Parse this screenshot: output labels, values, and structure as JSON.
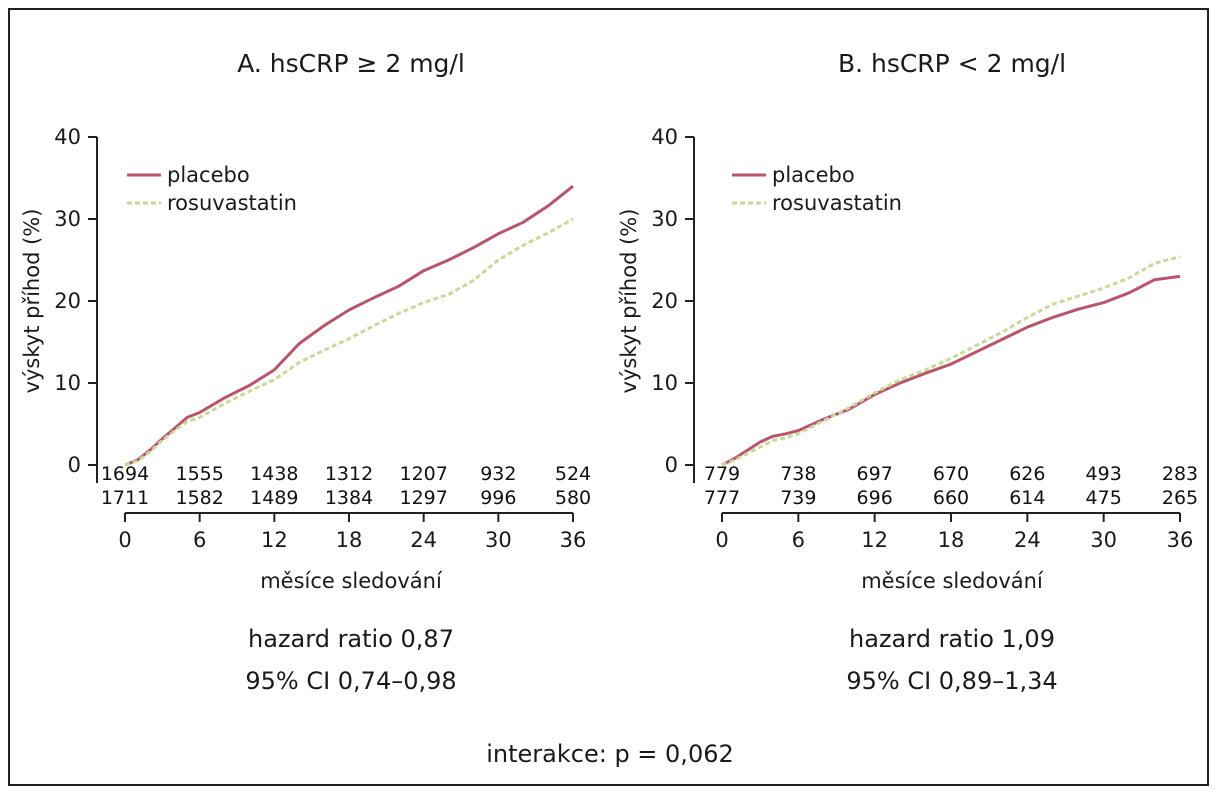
{
  "chart_data": [
    {
      "type": "line",
      "title": "A. hsCRP ≥ 2 mg/l",
      "xlabel": "měsíce sledování",
      "ylabel": "výskyt příhod (%)",
      "xlim": [
        0,
        36
      ],
      "ylim": [
        0,
        40
      ],
      "x_ticks": [
        "0",
        "6",
        "12",
        "18",
        "24",
        "30",
        "36"
      ],
      "y_ticks": [
        "0",
        "10",
        "20",
        "30",
        "40"
      ],
      "legend_position": "top-left",
      "series": [
        {
          "name": "placebo",
          "x": [
            0,
            1,
            2,
            3,
            4,
            5,
            6,
            8,
            10,
            12,
            14,
            16,
            18,
            20,
            22,
            24,
            26,
            28,
            30,
            32,
            34,
            36
          ],
          "values": [
            0,
            0.6,
            1.8,
            3.2,
            4.5,
            5.8,
            6.4,
            8.2,
            9.7,
            11.6,
            14.8,
            17.0,
            18.9,
            20.4,
            21.8,
            23.7,
            25.0,
            26.5,
            28.2,
            29.6,
            31.6,
            34.0
          ]
        },
        {
          "name": "rosuvastatin",
          "x": [
            0,
            1,
            2,
            3,
            4,
            5,
            6,
            8,
            10,
            12,
            14,
            16,
            18,
            20,
            22,
            24,
            26,
            28,
            30,
            32,
            34,
            36
          ],
          "values": [
            0,
            0.5,
            1.6,
            3.0,
            4.2,
            5.3,
            5.8,
            7.5,
            9.0,
            10.4,
            12.5,
            14.0,
            15.4,
            17.0,
            18.5,
            19.8,
            20.8,
            22.5,
            25.0,
            26.8,
            28.3,
            30.0
          ]
        }
      ],
      "risk_table": {
        "times": [
          0,
          6,
          12,
          18,
          24,
          30,
          36
        ],
        "placebo": [
          "1694",
          "1555",
          "1438",
          "1312",
          "1207",
          "932",
          "524"
        ],
        "rosuvastatin": [
          "1711",
          "1582",
          "1489",
          "1384",
          "1297",
          "996",
          "580"
        ]
      },
      "hazard_ratio": "hazard ratio 0,87",
      "ci": "95% CI 0,74–0,98",
      "colors": {
        "placebo": "#b9556a",
        "rosuvastatin": "#c9d99b"
      }
    },
    {
      "type": "line",
      "title": "B. hsCRP < 2 mg/l",
      "xlabel": "měsíce sledování",
      "ylabel": "výskyt příhod (%)",
      "xlim": [
        0,
        36
      ],
      "ylim": [
        0,
        40
      ],
      "x_ticks": [
        "0",
        "6",
        "12",
        "18",
        "24",
        "30",
        "36"
      ],
      "y_ticks": [
        "0",
        "10",
        "20",
        "30",
        "40"
      ],
      "legend_position": "top-left",
      "series": [
        {
          "name": "placebo",
          "x": [
            0,
            1,
            2,
            3,
            4,
            5,
            6,
            8,
            10,
            12,
            14,
            16,
            18,
            20,
            22,
            24,
            26,
            28,
            30,
            32,
            34,
            36
          ],
          "values": [
            0,
            0.8,
            1.8,
            2.8,
            3.5,
            3.8,
            4.2,
            5.6,
            6.8,
            8.6,
            10.0,
            11.2,
            12.3,
            13.8,
            15.3,
            16.8,
            18.0,
            19.0,
            19.8,
            21.0,
            22.6,
            23.0
          ]
        },
        {
          "name": "rosuvastatin",
          "x": [
            0,
            1,
            2,
            3,
            4,
            5,
            6,
            8,
            10,
            12,
            14,
            16,
            18,
            20,
            22,
            24,
            26,
            28,
            30,
            32,
            34,
            36
          ],
          "values": [
            0,
            0.6,
            1.4,
            2.2,
            3.0,
            3.3,
            3.8,
            5.4,
            7.0,
            8.8,
            10.4,
            11.6,
            13.0,
            14.6,
            16.2,
            18.0,
            19.6,
            20.6,
            21.6,
            22.8,
            24.6,
            25.4
          ]
        }
      ],
      "risk_table": {
        "times": [
          0,
          6,
          12,
          18,
          24,
          30,
          36
        ],
        "placebo": [
          "779",
          "738",
          "697",
          "670",
          "626",
          "493",
          "283"
        ],
        "rosuvastatin": [
          "777",
          "739",
          "696",
          "660",
          "614",
          "475",
          "265"
        ]
      },
      "hazard_ratio": "hazard ratio 1,09",
      "ci": "95% CI 0,89–1,34",
      "colors": {
        "placebo": "#b9556a",
        "rosuvastatin": "#c9d99b"
      }
    }
  ],
  "footer": {
    "interaction": "interakce: p = 0,062"
  }
}
